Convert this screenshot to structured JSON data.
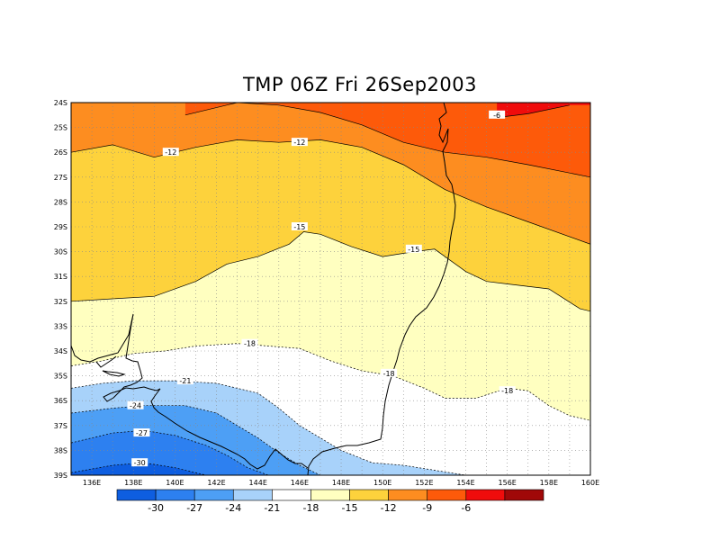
{
  "title": "TMP 06Z Fri 26Sep2003",
  "lat_labels": [
    "24S",
    "25S",
    "26S",
    "27S",
    "28S",
    "29S",
    "30S",
    "31S",
    "32S",
    "33S",
    "34S",
    "35S",
    "36S",
    "37S",
    "38S",
    "39S"
  ],
  "lon_labels": [
    "136E",
    "138E",
    "140E",
    "142E",
    "144E",
    "146E",
    "148E",
    "150E",
    "152E",
    "154E",
    "156E",
    "158E",
    "160E"
  ],
  "colorbar": {
    "colors": [
      "#0e5ee0",
      "#2d80f0",
      "#4d9ff5",
      "#a8d2fa",
      "#ffffff",
      "#ffffc0",
      "#fdd23c",
      "#fd8d20",
      "#fd5a0a",
      "#f00c0c",
      "#a00808"
    ],
    "labels": [
      "-30",
      "-27",
      "-24",
      "-21",
      "-18",
      "-15",
      "-12",
      "-9",
      "-6"
    ]
  },
  "contour_labels": [
    "-6",
    "-12",
    "-12",
    "-15",
    "-15",
    "-18",
    "-18",
    "-18",
    "-21",
    "-24",
    "-27",
    "-30"
  ],
  "chart_data": {
    "type": "heatmap",
    "title": "TMP 06Z Fri 26Sep2003",
    "lon_range": [
      "135E",
      "160E"
    ],
    "lat_range": [
      "24S",
      "39S"
    ],
    "contour_levels": [
      -30,
      -27,
      -24,
      -21,
      -18,
      -15,
      -12,
      -9,
      -6
    ],
    "contour_lines": [
      {
        "level": -6,
        "points": [
          [
            155.5,
            24.6
          ],
          [
            157,
            24.45
          ],
          [
            159,
            24.1
          ]
        ]
      },
      {
        "level": -9,
        "points": [
          [
            140.5,
            24.5
          ],
          [
            143,
            24
          ],
          [
            145,
            24.1
          ],
          [
            147,
            24.4
          ],
          [
            149,
            24.9
          ],
          [
            151,
            25.6
          ],
          [
            153,
            26.0
          ],
          [
            155,
            26.2
          ],
          [
            157,
            26.5
          ],
          [
            160,
            27.0
          ]
        ]
      },
      {
        "level": -12,
        "points": [
          [
            135,
            26.0
          ],
          [
            137,
            25.7
          ],
          [
            139,
            26.2
          ],
          [
            141,
            25.8
          ],
          [
            143,
            25.5
          ],
          [
            145,
            25.6
          ],
          [
            147,
            25.5
          ],
          [
            149,
            25.8
          ],
          [
            151,
            26.5
          ],
          [
            153,
            27.5
          ],
          [
            155,
            28.2
          ],
          [
            157,
            28.8
          ],
          [
            160,
            29.7
          ]
        ]
      },
      {
        "level": -15,
        "points": [
          [
            135,
            32.0
          ],
          [
            137,
            31.9
          ],
          [
            139,
            31.8
          ],
          [
            141,
            31.2
          ],
          [
            142.5,
            30.5
          ],
          [
            144,
            30.2
          ],
          [
            145.5,
            29.7
          ],
          [
            146.2,
            29.2
          ],
          [
            147,
            29.3
          ],
          [
            148.5,
            29.8
          ],
          [
            150,
            30.2
          ],
          [
            151.5,
            30.0
          ],
          [
            152.5,
            29.9
          ],
          [
            154,
            30.8
          ],
          [
            155,
            31.2
          ],
          [
            156,
            31.3
          ],
          [
            158,
            31.5
          ],
          [
            159.5,
            32.3
          ],
          [
            160,
            32.4
          ]
        ]
      },
      {
        "level": -18,
        "points": [
          [
            135,
            34.6
          ],
          [
            136.5,
            34.4
          ],
          [
            138,
            34.1
          ],
          [
            139.5,
            34.0
          ],
          [
            141,
            33.8
          ],
          [
            143,
            33.7
          ],
          [
            144.5,
            33.8
          ],
          [
            146,
            33.9
          ],
          [
            147.5,
            34.4
          ],
          [
            149,
            34.8
          ],
          [
            150.5,
            35.0
          ],
          [
            152,
            35.5
          ],
          [
            153,
            35.9
          ],
          [
            154.5,
            35.9
          ],
          [
            156,
            35.5
          ],
          [
            157,
            35.6
          ],
          [
            158,
            36.2
          ],
          [
            159,
            36.6
          ],
          [
            160,
            36.8
          ]
        ]
      },
      {
        "level": -21,
        "points": [
          [
            135,
            35.5
          ],
          [
            136.5,
            35.3
          ],
          [
            138,
            35.2
          ],
          [
            140,
            35.2
          ],
          [
            142,
            35.3
          ],
          [
            144,
            35.7
          ],
          [
            145,
            36.3
          ],
          [
            146,
            37.0
          ],
          [
            147,
            37.5
          ],
          [
            148,
            38.0
          ],
          [
            149.5,
            38.5
          ],
          [
            151,
            38.6
          ],
          [
            152.5,
            38.8
          ],
          [
            154,
            39.0
          ]
        ]
      },
      {
        "level": -24,
        "points": [
          [
            135,
            36.5
          ],
          [
            137,
            36.3
          ],
          [
            138.5,
            36.2
          ],
          [
            140.5,
            36.2
          ],
          [
            142,
            36.5
          ],
          [
            143,
            37.0
          ],
          [
            144,
            37.5
          ],
          [
            145,
            38.1
          ],
          [
            146,
            38.6
          ],
          [
            147,
            39.0
          ]
        ]
      },
      {
        "level": -27,
        "points": [
          [
            135,
            37.7
          ],
          [
            137,
            37.3
          ],
          [
            138.5,
            37.2
          ],
          [
            140,
            37.4
          ],
          [
            141.5,
            37.8
          ],
          [
            142.5,
            38.2
          ],
          [
            143.5,
            38.7
          ],
          [
            144.5,
            39.0
          ]
        ]
      },
      {
        "level": -30,
        "points": [
          [
            135,
            38.9
          ],
          [
            137,
            38.6
          ],
          [
            138.5,
            38.5
          ],
          [
            140,
            38.7
          ],
          [
            141.5,
            39.0
          ]
        ]
      }
    ],
    "grid": true
  }
}
